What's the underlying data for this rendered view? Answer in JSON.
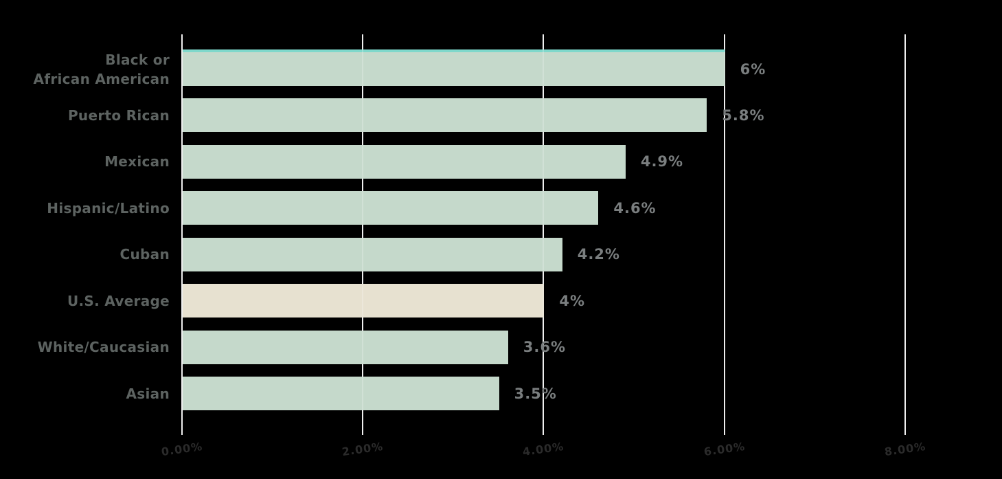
{
  "chart_data": {
    "type": "bar",
    "orientation": "horizontal",
    "title": "",
    "bars": [
      {
        "category": "Black or\nAfrican American",
        "value": 6.0,
        "label": "6%",
        "highlight": false
      },
      {
        "category": "Puerto Rican",
        "value": 5.8,
        "label": "5.8%",
        "highlight": false
      },
      {
        "category": "Mexican",
        "value": 4.9,
        "label": "4.9%",
        "highlight": false
      },
      {
        "category": "Hispanic/Latino",
        "value": 4.6,
        "label": "4.6%",
        "highlight": false
      },
      {
        "category": "Cuban",
        "value": 4.2,
        "label": "4.2%",
        "highlight": false
      },
      {
        "category": "U.S. Average",
        "value": 4.0,
        "label": "4%",
        "highlight": true
      },
      {
        "category": "White/Caucasian",
        "value": 3.6,
        "label": "3.6%",
        "highlight": false
      },
      {
        "category": "Asian",
        "value": 3.5,
        "label": "3.5%",
        "highlight": false
      }
    ],
    "accent_top_line_bar_index": 0,
    "x_axis": {
      "unit": "%",
      "min": 0,
      "max_visible": 8,
      "ticks": [
        {
          "value": 0,
          "label": "0.00%"
        },
        {
          "value": 2,
          "label": "2.00%"
        },
        {
          "value": 4,
          "label": "4.00%"
        },
        {
          "value": 6,
          "label": "6.00%"
        },
        {
          "value": 8,
          "label": "8.00%"
        }
      ]
    },
    "grid": true,
    "legend": false,
    "xlabel": "",
    "ylabel": "",
    "colors": {
      "bar": "#c5d9cb",
      "highlight_bar": "#e7e1d0",
      "accent_line": "#7fd8cb",
      "gridline": "#ebebeb",
      "category_label": "#5d6361",
      "value_label": "#7a7e7f",
      "tick_label": "#2b2b2b",
      "background": "#000000"
    }
  }
}
